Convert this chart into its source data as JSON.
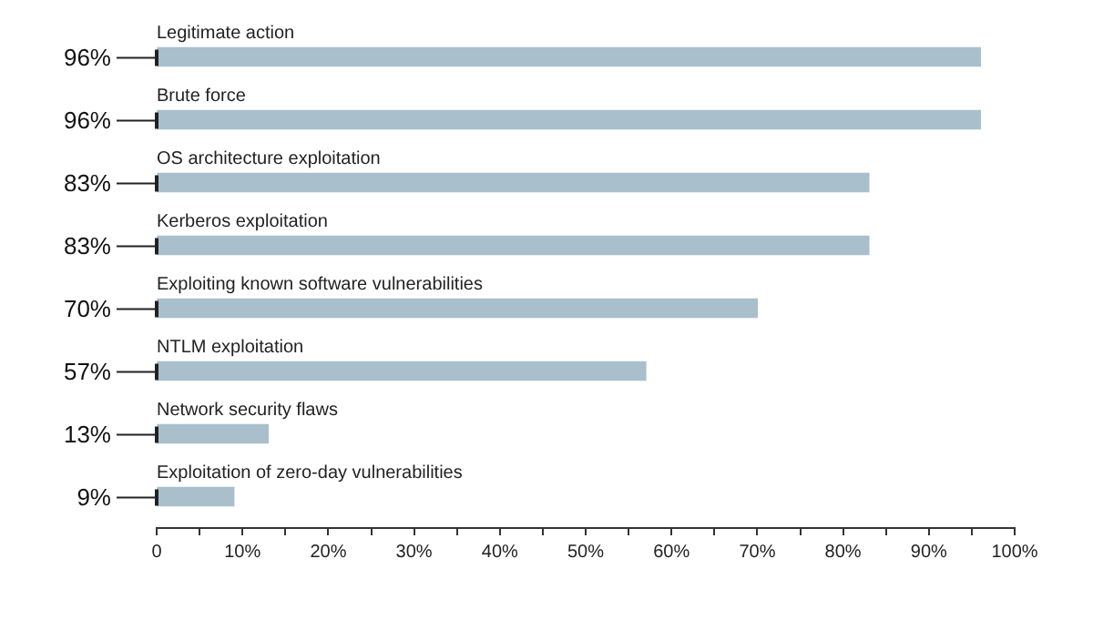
{
  "chart_data": {
    "type": "bar",
    "orientation": "horizontal",
    "categories": [
      "Legitimate action",
      "Brute force",
      "OS architecture exploitation",
      "Kerberos exploitation",
      "Exploiting known software vulnerabilities",
      "NTLM exploitation",
      "Network security flaws",
      "Exploitation of zero-day vulnerabilities"
    ],
    "values": [
      96,
      96,
      83,
      83,
      70,
      57,
      13,
      9
    ],
    "value_labels": [
      "96%",
      "96%",
      "83%",
      "83%",
      "70%",
      "57%",
      "13%",
      "9%"
    ],
    "color": "#a9bfcc",
    "xlim": [
      0,
      100
    ],
    "xticks": [
      {
        "value": 0,
        "label": "0"
      },
      {
        "value": 5,
        "label": null
      },
      {
        "value": 10,
        "label": "10%"
      },
      {
        "value": 15,
        "label": null
      },
      {
        "value": 20,
        "label": "20%"
      },
      {
        "value": 25,
        "label": null
      },
      {
        "value": 30,
        "label": "30%"
      },
      {
        "value": 35,
        "label": null
      },
      {
        "value": 40,
        "label": "40%"
      },
      {
        "value": 45,
        "label": null
      },
      {
        "value": 50,
        "label": "50%"
      },
      {
        "value": 55,
        "label": null
      },
      {
        "value": 60,
        "label": "60%"
      },
      {
        "value": 65,
        "label": null
      },
      {
        "value": 70,
        "label": "70%"
      },
      {
        "value": 75,
        "label": null
      },
      {
        "value": 80,
        "label": "80%"
      },
      {
        "value": 85,
        "label": null
      },
      {
        "value": 90,
        "label": "90%"
      },
      {
        "value": 95,
        "label": null
      },
      {
        "value": 100,
        "label": "100%"
      }
    ],
    "grid": false,
    "legend": false
  }
}
